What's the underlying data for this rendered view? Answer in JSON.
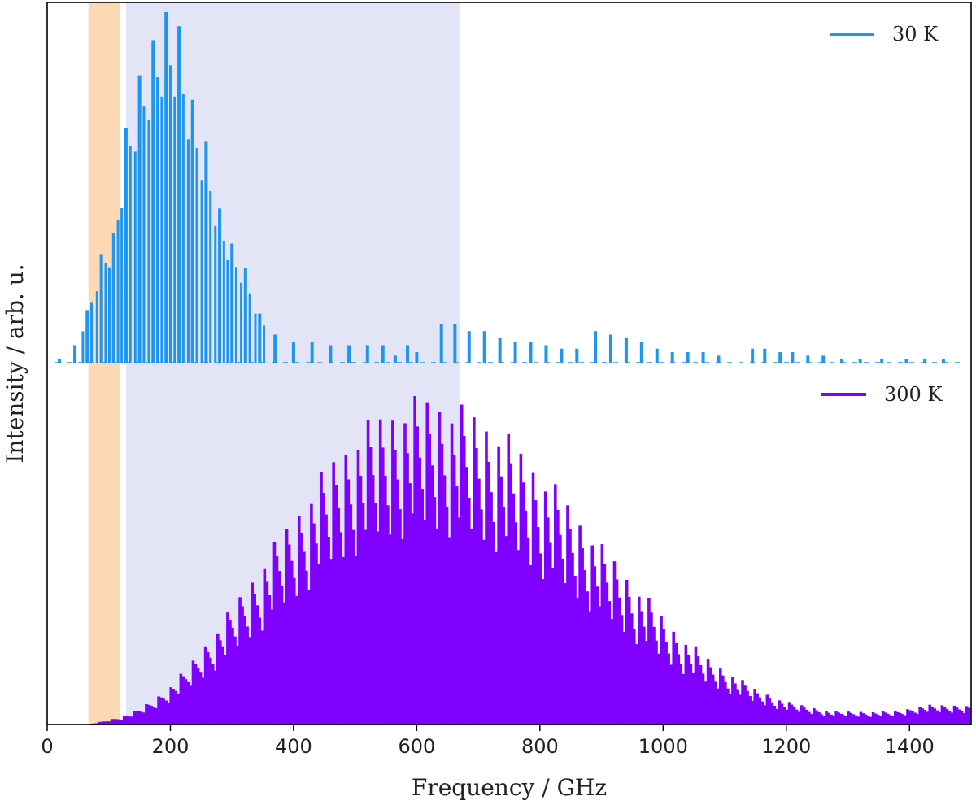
{
  "chart_data": {
    "type": "bar",
    "title": "",
    "xlabel": "Frequency / GHz",
    "ylabel": "Intensity / arb. u.",
    "xlim": [
      0,
      1500
    ],
    "x_ticks": [
      0,
      200,
      400,
      600,
      800,
      1000,
      1200,
      1400
    ],
    "y_ticks_shown": false,
    "grid": false,
    "legend_placement": "top-right of each panel",
    "shaded_regions": [
      {
        "x_range": [
          67,
          118
        ],
        "color": "#fdd9b5",
        "spans": "full height"
      },
      {
        "x_range": [
          128,
          670
        ],
        "color": "#e4e4f7",
        "spans": "full height"
      }
    ],
    "panels": [
      {
        "position": "top",
        "series_name": "30 K",
        "color": "#1f96ee",
        "baseline": "offset",
        "peak_frequency_GHz": 193,
        "sampled_envelope": {
          "x": [
            20,
            45,
            65,
            88,
            108,
            128,
            150,
            172,
            193,
            214,
            236,
            258,
            280,
            300,
            322,
            345,
            370,
            400,
            430,
            460,
            490,
            520,
            545,
            565,
            585,
            600,
            640,
            662,
            685,
            710,
            735,
            760,
            785,
            810,
            835,
            860,
            890,
            915,
            940,
            965,
            990,
            1015,
            1040,
            1065,
            1090,
            1145,
            1165,
            1190,
            1210,
            1235,
            1260,
            1290,
            1320,
            1355,
            1395,
            1425,
            1455
          ],
          "values": [
            0.01,
            0.05,
            0.15,
            0.31,
            0.37,
            0.67,
            0.82,
            0.92,
            1.0,
            0.96,
            0.75,
            0.63,
            0.44,
            0.34,
            0.27,
            0.14,
            0.08,
            0.06,
            0.06,
            0.05,
            0.05,
            0.05,
            0.05,
            0.02,
            0.05,
            0.03,
            0.11,
            0.11,
            0.09,
            0.09,
            0.07,
            0.06,
            0.06,
            0.05,
            0.04,
            0.04,
            0.09,
            0.08,
            0.07,
            0.06,
            0.04,
            0.03,
            0.03,
            0.03,
            0.02,
            0.04,
            0.04,
            0.03,
            0.03,
            0.02,
            0.02,
            0.01,
            0.01,
            0.01,
            0.01,
            0.01,
            0.01
          ]
        }
      },
      {
        "position": "bottom",
        "series_name": "300 K",
        "color": "#7f00ff",
        "baseline": "zero",
        "peak_frequency_GHz": 625,
        "sampled_envelope": {
          "x": [
            65,
            90,
            110,
            130,
            150,
            175,
            200,
            225,
            250,
            275,
            300,
            325,
            350,
            375,
            400,
            425,
            450,
            475,
            500,
            525,
            550,
            575,
            600,
            625,
            650,
            675,
            700,
            725,
            750,
            775,
            800,
            825,
            850,
            875,
            900,
            925,
            950,
            975,
            1000,
            1025,
            1050,
            1075,
            1100,
            1125,
            1150,
            1175,
            1200,
            1225,
            1250,
            1275,
            1300,
            1325,
            1350,
            1375,
            1400,
            1425,
            1450,
            1475,
            1500
          ],
          "values": [
            0.0,
            0.01,
            0.02,
            0.03,
            0.05,
            0.08,
            0.12,
            0.17,
            0.23,
            0.29,
            0.36,
            0.43,
            0.5,
            0.57,
            0.64,
            0.71,
            0.78,
            0.84,
            0.89,
            0.93,
            0.96,
            0.98,
            1.0,
            1.0,
            0.99,
            0.97,
            0.95,
            0.92,
            0.88,
            0.83,
            0.78,
            0.73,
            0.67,
            0.61,
            0.55,
            0.5,
            0.44,
            0.39,
            0.33,
            0.28,
            0.24,
            0.2,
            0.17,
            0.14,
            0.11,
            0.09,
            0.07,
            0.06,
            0.05,
            0.04,
            0.04,
            0.04,
            0.04,
            0.04,
            0.05,
            0.06,
            0.06,
            0.06,
            0.06
          ]
        }
      }
    ]
  }
}
